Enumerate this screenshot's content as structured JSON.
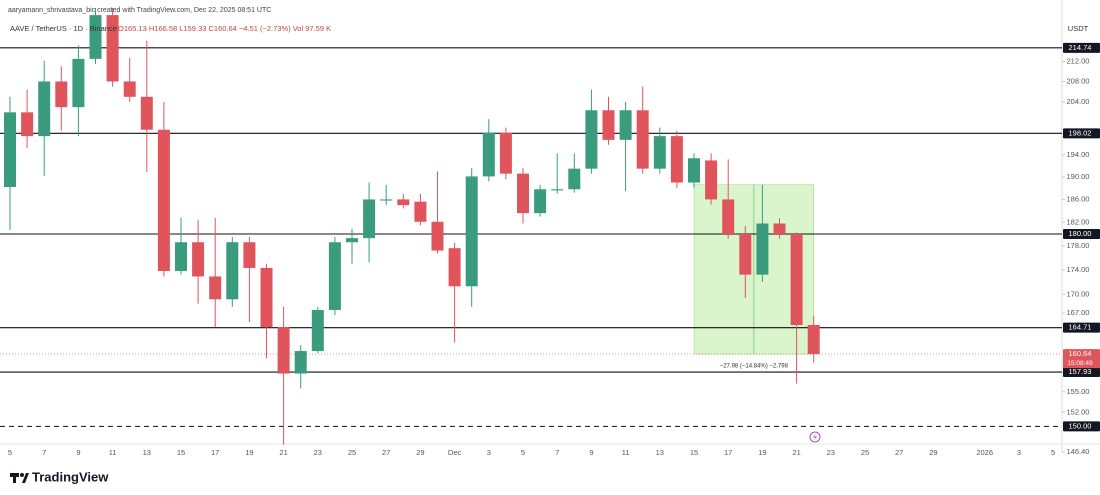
{
  "chart_data": {
    "type": "candlestick",
    "title": "aaryamann_shrivastava_bic created with TradingView.com, Dec 22, 2025 08:51 UTC",
    "symbol": "AAVE / TetherUS · 1D · Binance",
    "ohlc_legend": "O165.13 H166.58 L159.33 C160.64 −4.51 (−2.73%) Vol 97.59 K",
    "currency": "USDT",
    "brand": "TradingView",
    "log_scale": true,
    "grid": false,
    "up_color": "#3a9c7c",
    "down_color": "#e0555b",
    "categories": [
      "5",
      null,
      "7",
      null,
      "9",
      null,
      "11",
      null,
      "13",
      null,
      "15",
      null,
      "17",
      null,
      "19",
      null,
      "21",
      null,
      "23",
      null,
      "25",
      null,
      "27",
      null,
      "29",
      null,
      "Dec",
      null,
      "3",
      null,
      "5",
      null,
      "7",
      null,
      "9",
      null,
      "11",
      null,
      "13",
      null,
      "15",
      null,
      "17",
      null,
      "19",
      null,
      "21",
      null,
      "23",
      null,
      "25",
      null,
      "27",
      null,
      "29",
      null,
      null,
      "2026",
      null,
      "3",
      null,
      "5"
    ],
    "open": [
      188.2,
      202.0,
      197.5,
      208.0,
      203.0,
      212.5,
      221.5,
      208.0,
      205.0,
      198.7,
      173.8,
      178.6,
      172.9,
      169.2,
      178.6,
      174.3,
      164.8,
      157.7,
      161.1,
      167.5,
      178.6,
      179.3,
      185.8,
      186.0,
      185.6,
      182.1,
      177.6,
      171.3,
      190.1,
      198.1,
      190.6,
      183.6,
      187.6,
      187.8,
      191.5,
      202.4,
      196.8,
      202.4,
      191.5,
      197.5,
      189.0,
      193.0,
      186.0,
      180.0,
      173.2,
      181.8,
      180.0,
      165.13,
      null,
      null,
      null,
      null,
      null,
      null,
      null,
      null,
      null,
      null,
      null,
      null,
      null,
      null
    ],
    "high": [
      205.0,
      206.4,
      212.1,
      211.0,
      215.2,
      223,
      223,
      212.7,
      216.2,
      204.0,
      182.8,
      182.4,
      182.8,
      179.5,
      179.5,
      175.0,
      168.0,
      162.0,
      168.0,
      179.5,
      180.9,
      189.0,
      188.6,
      187.0,
      187.0,
      191.0,
      178.5,
      191.6,
      200.7,
      199.1,
      191.6,
      188.6,
      194.3,
      194.3,
      206.4,
      205.0,
      204.0,
      207.0,
      199.1,
      198.5,
      194.3,
      194.3,
      193.2,
      181.4,
      188.6,
      182.7,
      180.3,
      166.58,
      null,
      null,
      null,
      null,
      null,
      null,
      null,
      null,
      null,
      null,
      null,
      null,
      null,
      null
    ],
    "low": [
      180.7,
      195.3,
      190.2,
      198.5,
      197.5,
      211.5,
      207.0,
      204.0,
      190.9,
      172.9,
      173.2,
      168.5,
      164.8,
      168.0,
      165.6,
      160.0,
      147.4,
      155.5,
      160.8,
      166.7,
      175.0,
      175.2,
      185.0,
      184.4,
      181.5,
      176.7,
      162.4,
      168.0,
      189.2,
      189.6,
      181.8,
      183.0,
      187.0,
      187.2,
      190.6,
      195.9,
      187.5,
      190.6,
      190.6,
      188.0,
      188.1,
      185.1,
      179.2,
      169.4,
      172.0,
      179.2,
      156.2,
      159.33,
      null,
      null,
      null,
      null,
      null,
      null,
      null,
      null,
      null,
      null,
      null,
      null,
      null,
      null
    ],
    "close": [
      202.0,
      197.5,
      208.0,
      203.0,
      212.5,
      221.5,
      208.0,
      205.0,
      198.7,
      173.8,
      178.6,
      172.9,
      169.2,
      178.6,
      174.3,
      164.8,
      157.7,
      161.1,
      167.5,
      178.6,
      179.3,
      186.0,
      186.0,
      185.0,
      182.1,
      177.2,
      171.3,
      190.1,
      198.1,
      190.6,
      183.6,
      187.8,
      187.8,
      191.5,
      202.4,
      196.8,
      202.4,
      191.5,
      197.5,
      189.0,
      193.4,
      186.0,
      180.0,
      173.2,
      181.8,
      180.0,
      165.13,
      160.64,
      null,
      null,
      null,
      null,
      null,
      null,
      null,
      null,
      null,
      null,
      null,
      null,
      null,
      null
    ],
    "ylim": [
      146.4,
      223
    ],
    "yticks": [
      {
        "value": 212,
        "label": "212.00"
      },
      {
        "value": 208,
        "label": "208.00"
      },
      {
        "value": 204,
        "label": "204.00"
      },
      {
        "value": 194,
        "label": "194.00"
      },
      {
        "value": 190,
        "label": "190.00"
      },
      {
        "value": 186,
        "label": "186.00"
      },
      {
        "value": 182,
        "label": "182.00"
      },
      {
        "value": 178,
        "label": "178.00"
      },
      {
        "value": 174,
        "label": "174.00"
      },
      {
        "value": 170,
        "label": "170.00"
      },
      {
        "value": 167,
        "label": "167.00"
      },
      {
        "value": 155,
        "label": "155.00"
      },
      {
        "value": 152,
        "label": "152.00"
      },
      {
        "value": 146.4,
        "label": "146.40"
      }
    ],
    "levels": [
      {
        "value": 214.74,
        "label": "214.74",
        "style": "solid"
      },
      {
        "value": 198.02,
        "label": "198.02",
        "style": "solid"
      },
      {
        "value": 180,
        "label": "180.00",
        "style": "solid"
      },
      {
        "value": 164.71,
        "label": "164.71",
        "style": "solid"
      },
      {
        "value": 157.93,
        "label": "157.93",
        "style": "solid"
      },
      {
        "value": 150,
        "label": "150.00",
        "style": "dashed"
      }
    ],
    "last_price": {
      "value": 160.64,
      "label": "160.64",
      "countdown": "15:08:49"
    },
    "measure": {
      "start": 40,
      "end": 47,
      "high": 188.62,
      "low": 160.64,
      "label": "−27.98 (−14.84%) −2,798"
    }
  }
}
